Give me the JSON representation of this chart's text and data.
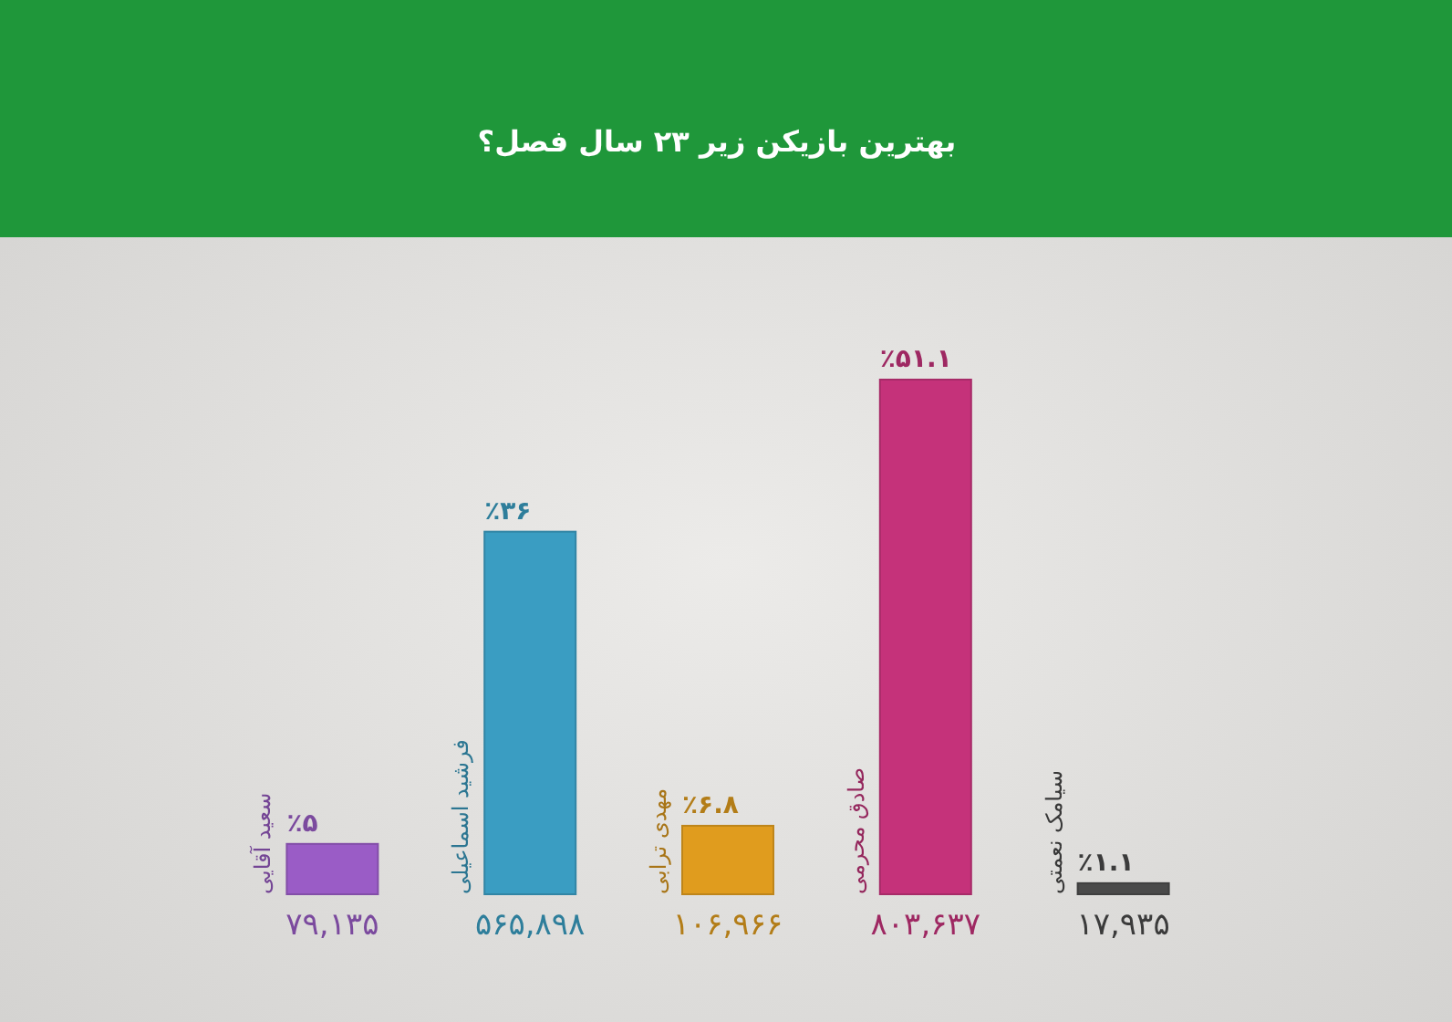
{
  "chart_data": {
    "type": "bar",
    "title": "بهترین بازیکن زیر ۲۳ سال فصل؟",
    "categories": [
      "سعید آقایی",
      "فرشید اسماعیلی",
      "مهدی ترابی",
      "صادق محرمی",
      "سیامک نعمتی"
    ],
    "values": [
      5,
      36,
      6.8,
      51.1,
      1.1
    ],
    "colors": [
      "#9a5cc6",
      "#3a9dc2",
      "#e09c1e",
      "#c5327a",
      "#4a4a4a"
    ],
    "value_labels": [
      "٪۵",
      "٪۳۶",
      "٪۶.۸",
      "٪۵۱.۱",
      "٪۱.۱"
    ],
    "annotations": [
      "۷۹,۱۳۵",
      "۵۶۵,۸۹۸",
      "۱۰۶,۹۶۶",
      "۸۰۳,۶۳۷",
      "۱۷,۹۳۵"
    ]
  }
}
